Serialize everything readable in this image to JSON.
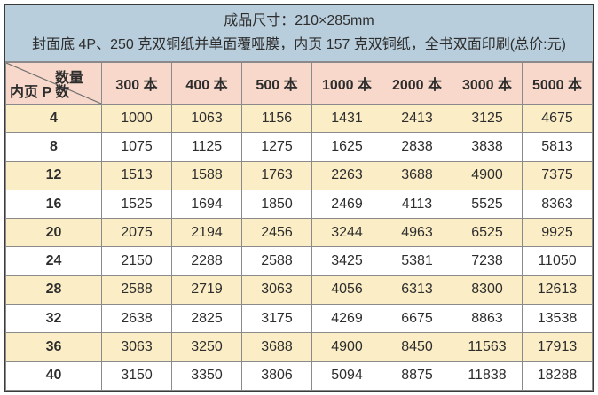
{
  "header": {
    "line1": "成品尺寸：210×285mm",
    "line2": "封面底 4P、250 克双铜纸并单面覆哑膜，内页 157 克双铜纸，全书双面印刷(总价:元)"
  },
  "table": {
    "corner": {
      "top_right": "数量",
      "bottom_left": "内页 P 数"
    },
    "columns": [
      "300 本",
      "400 本",
      "500 本",
      "1000 本",
      "2000 本",
      "3000 本",
      "5000 本"
    ],
    "rows": [
      {
        "pages": "4",
        "prices": [
          1000,
          1063,
          1156,
          1431,
          2413,
          3125,
          4675
        ]
      },
      {
        "pages": "8",
        "prices": [
          1075,
          1125,
          1275,
          1625,
          2838,
          3838,
          5813
        ]
      },
      {
        "pages": "12",
        "prices": [
          1513,
          1588,
          1763,
          2263,
          3688,
          4900,
          7375
        ]
      },
      {
        "pages": "16",
        "prices": [
          1525,
          1694,
          1850,
          2469,
          4113,
          5525,
          8363
        ]
      },
      {
        "pages": "20",
        "prices": [
          2075,
          2194,
          2456,
          3244,
          4963,
          6525,
          9925
        ]
      },
      {
        "pages": "24",
        "prices": [
          2150,
          2288,
          2588,
          3425,
          5381,
          7238,
          11050
        ]
      },
      {
        "pages": "28",
        "prices": [
          2588,
          2719,
          3063,
          4056,
          6313,
          8300,
          12613
        ]
      },
      {
        "pages": "32",
        "prices": [
          2638,
          2825,
          3175,
          4269,
          6675,
          8863,
          13538
        ]
      },
      {
        "pages": "36",
        "prices": [
          3063,
          3250,
          3688,
          4900,
          8450,
          11563,
          17913
        ]
      },
      {
        "pages": "40",
        "prices": [
          3150,
          3350,
          3806,
          5094,
          8875,
          11838,
          18288
        ]
      }
    ]
  },
  "colors": {
    "band_blue": "#b9cedc",
    "header_pink": "#f8d8ca",
    "row_yellow": "#fbeec6",
    "row_white": "#ffffff",
    "grid_line": "#8a8a8a",
    "outer_border": "#3a3a3a",
    "text_color": "#2d2d2d"
  }
}
